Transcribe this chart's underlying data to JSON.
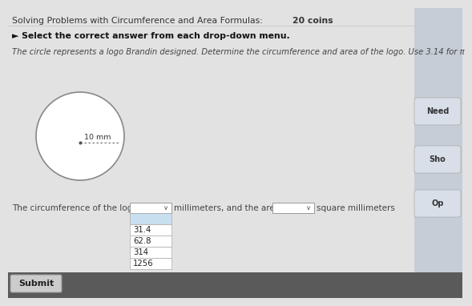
{
  "title_normal": "Solving Problems with Circumference and Area Formulas: ",
  "title_bold": "20 coins",
  "subtitle": "► Select the correct answer from each drop-down menu.",
  "body_text": "The circle represents a logo Brandin designed. Determine the circumference and area of the logo. Use 3.14 for π",
  "circle_radius_label": "10 mm",
  "bottom_text_pre": "The circumference of the logo is",
  "bottom_text_mid": "millimeters, and the area is",
  "bottom_text_post": "square millimeters",
  "dropdown_options": [
    "31.4",
    "62.8",
    "314",
    "1256"
  ],
  "dropdown_highlight_color": "#c8dff0",
  "submit_label": "Submit",
  "need_label": "Need",
  "show_label": "Sho",
  "opt_label": "Op",
  "bg_main": "#e2e2e2",
  "bg_dark": "#5a5a5a",
  "circle_color": "#ffffff",
  "circle_edge": "#888888",
  "right_panel_color": "#c5cdd6",
  "right_panel_btn_color": "#d8dfe8",
  "title_color": "#333333",
  "text_color": "#444444",
  "subtitle_color": "#111111"
}
